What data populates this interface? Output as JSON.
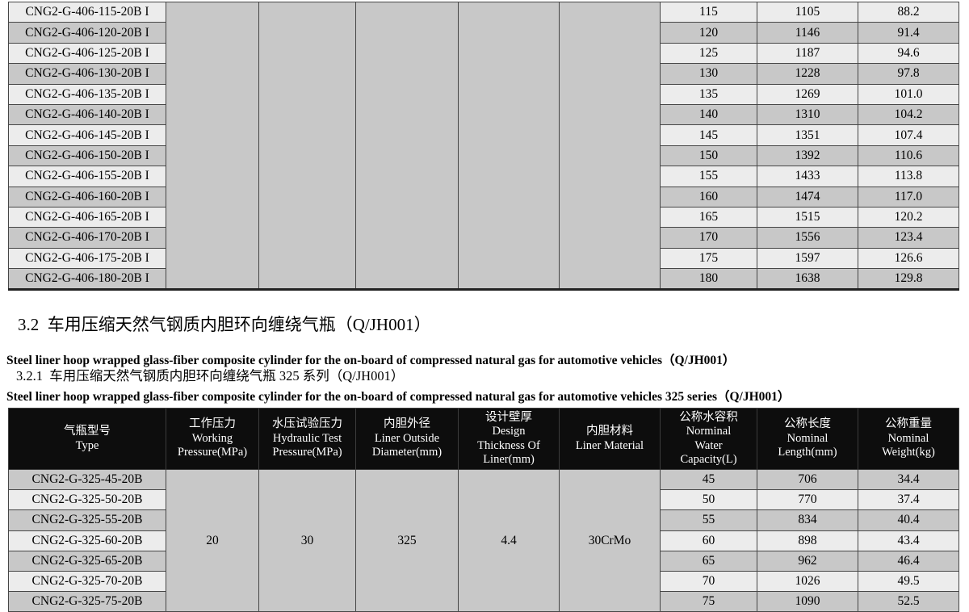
{
  "colors": {
    "row_light": "#ececec",
    "row_dark": "#c8c8c8",
    "header_bg": "#0d0d0d",
    "header_text": "#ffffff",
    "border": "#464646"
  },
  "section": {
    "heading": "3.2  车用压缩天然气钢质内胆环向缠绕气瓶（Q/JH001）",
    "subtitle_en": "Steel liner hoop wrapped glass-fiber composite cylinder for the on-board of compressed natural gas for automotive vehicles（Q/JH001）",
    "subsection_heading": "3.2.1  车用压缩天然气钢质内胆环向缠绕气瓶 325 系列（Q/JH001）",
    "subsection_subtitle_en": "Steel liner hoop wrapped glass-fiber composite cylinder for the on-board of compressed natural gas for automotive vehicles 325 series（Q/JH001）"
  },
  "table_406": {
    "merged_empty_cells": [
      "",
      "",
      "",
      "",
      ""
    ],
    "rows": [
      {
        "model": "CNG2-G-406-115-20B I",
        "water_capacity": "115",
        "length": "1105",
        "weight": "88.2"
      },
      {
        "model": "CNG2-G-406-120-20B I",
        "water_capacity": "120",
        "length": "1146",
        "weight": "91.4"
      },
      {
        "model": "CNG2-G-406-125-20B I",
        "water_capacity": "125",
        "length": "1187",
        "weight": "94.6"
      },
      {
        "model": "CNG2-G-406-130-20B I",
        "water_capacity": "130",
        "length": "1228",
        "weight": "97.8"
      },
      {
        "model": "CNG2-G-406-135-20B I",
        "water_capacity": "135",
        "length": "1269",
        "weight": "101.0"
      },
      {
        "model": "CNG2-G-406-140-20B I",
        "water_capacity": "140",
        "length": "1310",
        "weight": "104.2"
      },
      {
        "model": "CNG2-G-406-145-20B I",
        "water_capacity": "145",
        "length": "1351",
        "weight": "107.4"
      },
      {
        "model": "CNG2-G-406-150-20B I",
        "water_capacity": "150",
        "length": "1392",
        "weight": "110.6"
      },
      {
        "model": "CNG2-G-406-155-20B I",
        "water_capacity": "155",
        "length": "1433",
        "weight": "113.8"
      },
      {
        "model": "CNG2-G-406-160-20B I",
        "water_capacity": "160",
        "length": "1474",
        "weight": "117.0"
      },
      {
        "model": "CNG2-G-406-165-20B I",
        "water_capacity": "165",
        "length": "1515",
        "weight": "120.2"
      },
      {
        "model": "CNG2-G-406-170-20B I",
        "water_capacity": "170",
        "length": "1556",
        "weight": "123.4"
      },
      {
        "model": "CNG2-G-406-175-20B I",
        "water_capacity": "175",
        "length": "1597",
        "weight": "126.6"
      },
      {
        "model": "CNG2-G-406-180-20B I",
        "water_capacity": "180",
        "length": "1638",
        "weight": "129.8"
      }
    ]
  },
  "table_325": {
    "header": [
      {
        "lines": [
          "气瓶型号",
          "Type"
        ]
      },
      {
        "lines": [
          "工作压力",
          "Working",
          "Pressure(MPa)"
        ]
      },
      {
        "lines": [
          "水压试验压力",
          "Hydraulic Test",
          "Pressure(MPa)"
        ]
      },
      {
        "lines": [
          "内胆外径",
          "Liner Outside",
          "Diameter(mm)"
        ]
      },
      {
        "lines": [
          "设计壁厚",
          "Design",
          "Thickness Of",
          "Liner(mm)"
        ]
      },
      {
        "lines": [
          "内胆材料",
          "Liner Material"
        ]
      },
      {
        "lines": [
          "公称水容积",
          "Norminal",
          "Water",
          "Capacity(L)"
        ]
      },
      {
        "lines": [
          "公称长度",
          "Nominal",
          "Length(mm)"
        ]
      },
      {
        "lines": [
          "公称重量",
          "Nominal",
          "Weight(kg)"
        ]
      }
    ],
    "merged_values": {
      "working_pressure": "20",
      "hydraulic_test_pressure": "30",
      "liner_outside_diameter": "325",
      "design_thickness": "4.4",
      "liner_material": "30CrMo"
    },
    "rows": [
      {
        "model": "CNG2-G-325-45-20B",
        "water_capacity": "45",
        "length": "706",
        "weight": "34.4"
      },
      {
        "model": "CNG2-G-325-50-20B",
        "water_capacity": "50",
        "length": "770",
        "weight": "37.4"
      },
      {
        "model": "CNG2-G-325-55-20B",
        "water_capacity": "55",
        "length": "834",
        "weight": "40.4"
      },
      {
        "model": "CNG2-G-325-60-20B",
        "water_capacity": "60",
        "length": "898",
        "weight": "43.4"
      },
      {
        "model": "CNG2-G-325-65-20B",
        "water_capacity": "65",
        "length": "962",
        "weight": "46.4"
      },
      {
        "model": "CNG2-G-325-70-20B",
        "water_capacity": "70",
        "length": "1026",
        "weight": "49.5"
      },
      {
        "model": "CNG2-G-325-75-20B",
        "water_capacity": "75",
        "length": "1090",
        "weight": "52.5"
      }
    ]
  }
}
